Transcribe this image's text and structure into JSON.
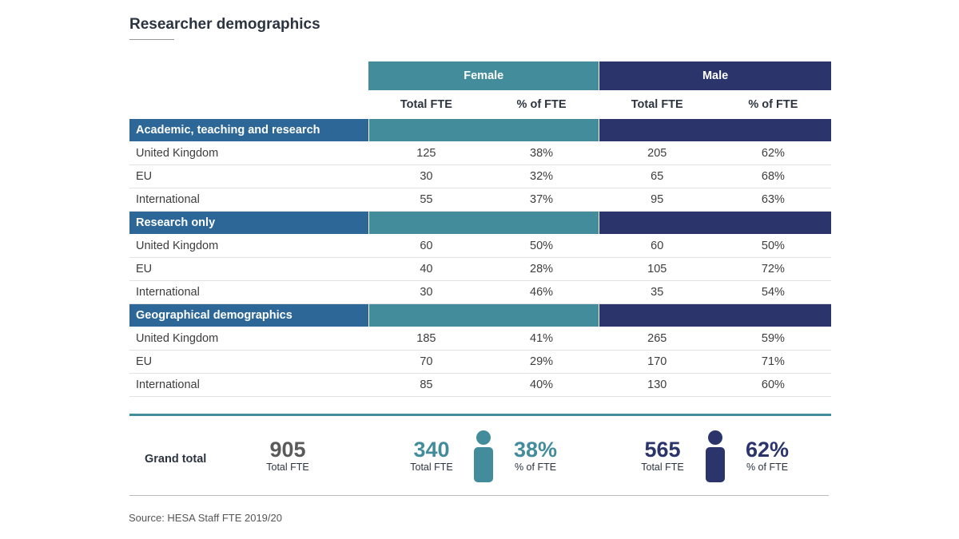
{
  "title": "Researcher demographics",
  "colors": {
    "female": "#438c9b",
    "male": "#2b356b",
    "section": "#2c6797"
  },
  "groups": {
    "female": "Female",
    "male": "Male"
  },
  "subheaders": {
    "total": "Total FTE",
    "pct": "% of FTE"
  },
  "sections": [
    {
      "label": "Academic, teaching and research",
      "rows": [
        {
          "label": "United Kingdom",
          "f_total": "125",
          "f_pct": "38%",
          "m_total": "205",
          "m_pct": "62%"
        },
        {
          "label": "EU",
          "f_total": "30",
          "f_pct": "32%",
          "m_total": "65",
          "m_pct": "68%"
        },
        {
          "label": "International",
          "f_total": "55",
          "f_pct": "37%",
          "m_total": "95",
          "m_pct": "63%"
        }
      ]
    },
    {
      "label": "Research only",
      "rows": [
        {
          "label": "United Kingdom",
          "f_total": "60",
          "f_pct": "50%",
          "m_total": "60",
          "m_pct": "50%"
        },
        {
          "label": "EU",
          "f_total": "40",
          "f_pct": "28%",
          "m_total": "105",
          "m_pct": "72%"
        },
        {
          "label": "International",
          "f_total": "30",
          "f_pct": "46%",
          "m_total": "35",
          "m_pct": "54%"
        }
      ]
    },
    {
      "label": "Geographical demographics",
      "rows": [
        {
          "label": "United Kingdom",
          "f_total": "185",
          "f_pct": "41%",
          "m_total": "265",
          "m_pct": "59%"
        },
        {
          "label": "EU",
          "f_total": "70",
          "f_pct": "29%",
          "m_total": "170",
          "m_pct": "71%"
        },
        {
          "label": "International",
          "f_total": "85",
          "f_pct": "40%",
          "m_total": "130",
          "m_pct": "60%"
        }
      ]
    }
  ],
  "grand_total": {
    "label": "Grand total",
    "total": {
      "value": "905",
      "label": "Total FTE"
    },
    "female_total": {
      "value": "340",
      "label": "Total FTE"
    },
    "female_pct": {
      "value": "38%",
      "label": "% of FTE"
    },
    "male_total": {
      "value": "565",
      "label": "Total FTE"
    },
    "male_pct": {
      "value": "62%",
      "label": "% of FTE"
    }
  },
  "source": "Source: HESA Staff FTE 2019/20"
}
